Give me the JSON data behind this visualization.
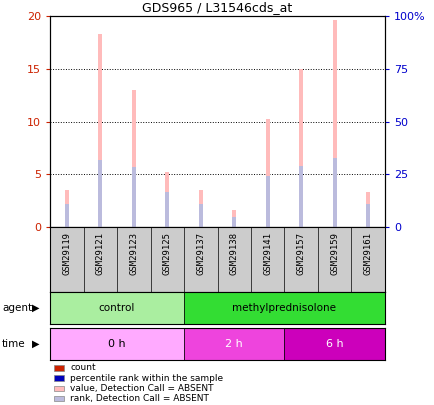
{
  "title": "GDS965 / L31546cds_at",
  "samples": [
    "GSM29119",
    "GSM29121",
    "GSM29123",
    "GSM29125",
    "GSM29137",
    "GSM29138",
    "GSM29141",
    "GSM29157",
    "GSM29159",
    "GSM29161"
  ],
  "absent_bar_values": [
    3.5,
    18.3,
    13.0,
    5.2,
    3.5,
    1.6,
    10.2,
    15.0,
    19.6,
    3.3
  ],
  "absent_rank_values": [
    2.2,
    6.3,
    5.7,
    3.3,
    2.2,
    0.9,
    4.8,
    5.8,
    6.5,
    2.2
  ],
  "ylim_left": [
    0,
    20
  ],
  "ylim_right": [
    0,
    100
  ],
  "yticks_left": [
    0,
    5,
    10,
    15,
    20
  ],
  "ytick_labels_left": [
    "0",
    "5",
    "10",
    "15",
    "20"
  ],
  "yticks_right": [
    0,
    25,
    50,
    75,
    100
  ],
  "ytick_labels_right": [
    "0",
    "25",
    "50",
    "75",
    "100%"
  ],
  "agent_groups": [
    {
      "label": "control",
      "start": 0,
      "end": 4,
      "color": "#aaeea0"
    },
    {
      "label": "methylprednisolone",
      "start": 4,
      "end": 10,
      "color": "#33dd33"
    }
  ],
  "time_colors": [
    "#ffaaff",
    "#ee44dd",
    "#cc00bb"
  ],
  "time_groups": [
    {
      "label": "0 h",
      "start": 0,
      "end": 4
    },
    {
      "label": "2 h",
      "start": 4,
      "end": 7
    },
    {
      "label": "6 h",
      "start": 7,
      "end": 10
    }
  ],
  "legend_items": [
    {
      "label": "count",
      "color": "#cc2200"
    },
    {
      "label": "percentile rank within the sample",
      "color": "#0000bb"
    },
    {
      "label": "value, Detection Call = ABSENT",
      "color": "#ffbbbb"
    },
    {
      "label": "rank, Detection Call = ABSENT",
      "color": "#bbbbdd"
    }
  ],
  "absent_bar_color": "#ffbbbb",
  "absent_rank_color": "#bbbbdd",
  "left_axis_color": "#cc2200",
  "right_axis_color": "#0000cc",
  "label_row_color": "#cccccc",
  "bar_width": 0.12
}
